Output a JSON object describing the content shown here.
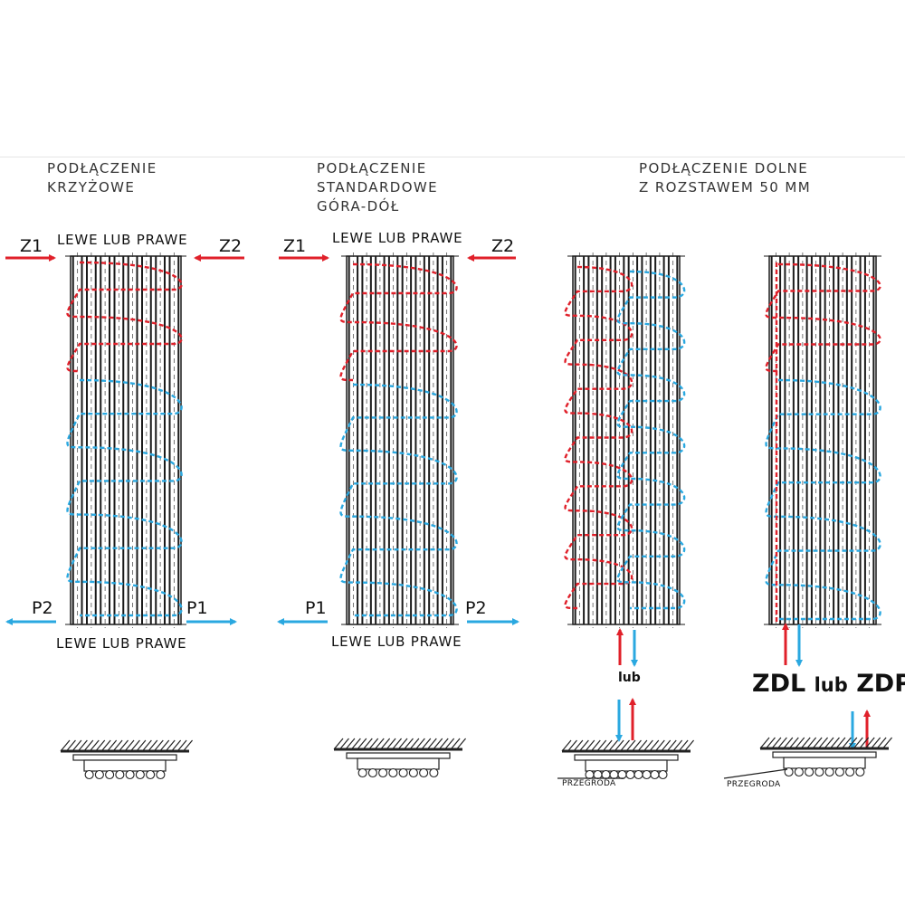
{
  "diagrams": [
    {
      "title_line1": "PODŁĄCZENIE",
      "title_line2": "KRZYŻOWE",
      "top_caption": "LEWE LUB PRAWE",
      "bottom_caption": "LEWE LUB PRAWE",
      "top_left_tag": "Z1",
      "top_right_tag": "Z2",
      "bottom_left_tag": "P2",
      "bottom_right_tag": "P1"
    },
    {
      "title_line1": "PODŁĄCZENIE",
      "title_line2": "STANDARDOWE",
      "title_line3": "GÓRA-DÓŁ",
      "top_caption": "LEWE LUB PRAWE",
      "bottom_caption": "LEWE LUB PRAWE",
      "top_left_tag": "Z1",
      "top_right_tag": "Z2",
      "bottom_left_tag": "P1",
      "bottom_right_tag": "P2"
    },
    {
      "title_line1": "PODŁĄCZENIE DOLNE",
      "title_line2": "Z ROZSTAWEM 50 MM",
      "middle_label": "lub",
      "partition_label_left": "PRZEGRODA",
      "partition_label_right": "PRZEGRODA",
      "bottom_options": {
        "left": "ZDL",
        "middle": "lub",
        "right": "ZDP"
      }
    }
  ],
  "colors": {
    "supply": "#e0202a",
    "return": "#2aa8e0",
    "panel": "#1a1a1a",
    "hatch": "#222222"
  }
}
